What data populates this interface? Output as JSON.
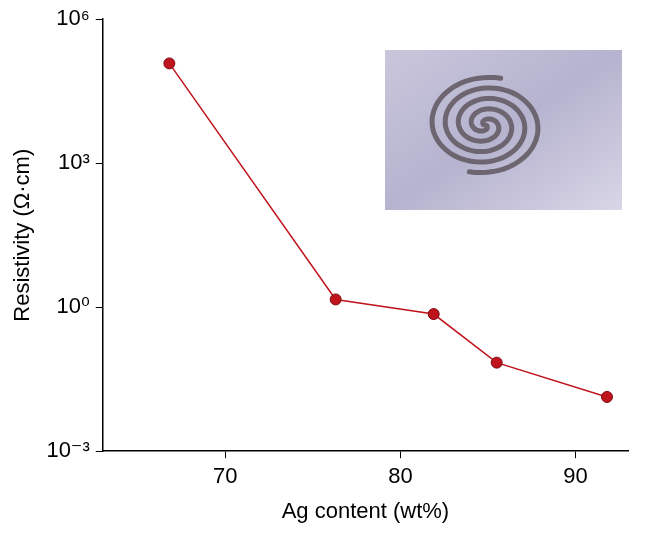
{
  "chart_data": {
    "type": "line",
    "x_label": "Ag content (wt%)",
    "y_label": "Resistivity (Ω·cm)",
    "x": [
      66.8,
      76.3,
      81.9,
      85.5,
      91.8
    ],
    "values": [
      120000,
      1.45,
      0.72,
      0.07,
      0.0135
    ],
    "color": "#c0141c",
    "marker": "circle",
    "xlim": [
      63,
      93
    ],
    "xticks": [
      70,
      80,
      90
    ],
    "ylim": [
      0.001,
      1000000
    ],
    "yticks": [
      {
        "value": 0.001,
        "label": "10⁻³"
      },
      {
        "value": 1,
        "label": "10⁰"
      },
      {
        "value": 1000,
        "label": "10³"
      },
      {
        "value": 1000000,
        "label": "10⁶"
      }
    ],
    "log": "y",
    "grid": false
  }
}
